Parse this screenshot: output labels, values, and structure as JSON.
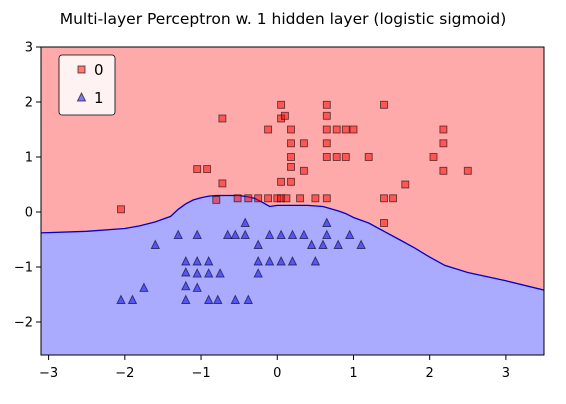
{
  "chart_data": {
    "type": "scatter",
    "title": "Multi-layer Perceptron w. 1 hidden layer (logistic sigmoid)",
    "xlabel": "",
    "ylabel": "",
    "xlim": [
      -3.1,
      3.5
    ],
    "ylim": [
      -2.6,
      3.0
    ],
    "x_ticks": [
      -3,
      -2,
      -1,
      0,
      1,
      2,
      3
    ],
    "y_ticks": [
      -2,
      -1,
      0,
      1,
      2,
      3
    ],
    "grid": false,
    "legend_position": "top-left",
    "colors": {
      "region_0": "#ffaaaa",
      "region_1": "#aaaaff",
      "marker_0": "#ff0000",
      "marker_1": "#0000ff",
      "boundary": "#0000cc"
    },
    "decision_boundary": {
      "x": [
        -3.1,
        -2.5,
        -2.0,
        -1.8,
        -1.6,
        -1.4,
        -1.3,
        -1.2,
        -1.1,
        -1.0,
        -0.9,
        -0.8,
        -0.7,
        -0.6,
        -0.5,
        -0.4,
        -0.3,
        -0.2,
        -0.1,
        0.0,
        0.2,
        0.4,
        0.6,
        0.8,
        0.9,
        1.0,
        1.2,
        1.4,
        1.6,
        1.8,
        2.0,
        2.2,
        2.5,
        3.0,
        3.5
      ],
      "y": [
        -0.38,
        -0.35,
        -0.3,
        -0.25,
        -0.18,
        -0.08,
        0.05,
        0.15,
        0.22,
        0.26,
        0.29,
        0.3,
        0.3,
        0.3,
        0.3,
        0.28,
        0.25,
        0.18,
        0.1,
        0.12,
        0.12,
        0.12,
        0.1,
        0.02,
        -0.03,
        -0.1,
        -0.2,
        -0.35,
        -0.5,
        -0.65,
        -0.82,
        -0.97,
        -1.1,
        -1.25,
        -1.42
      ]
    },
    "series": [
      {
        "name": "0",
        "marker": "square",
        "points": [
          [
            -2.05,
            0.05
          ],
          [
            -1.05,
            0.78
          ],
          [
            -0.92,
            0.78
          ],
          [
            -0.8,
            0.22
          ],
          [
            -0.72,
            0.52
          ],
          [
            -0.72,
            1.7
          ],
          [
            -0.52,
            0.25
          ],
          [
            -0.38,
            0.25
          ],
          [
            -0.25,
            0.25
          ],
          [
            -0.12,
            0.25
          ],
          [
            0.0,
            0.25
          ],
          [
            0.05,
            1.95
          ],
          [
            0.05,
            0.25
          ],
          [
            0.05,
            0.55
          ],
          [
            0.12,
            0.25
          ],
          [
            -0.12,
            1.5
          ],
          [
            0.05,
            1.7
          ],
          [
            0.1,
            1.75
          ],
          [
            0.18,
            1.0
          ],
          [
            0.18,
            1.25
          ],
          [
            0.18,
            1.5
          ],
          [
            0.18,
            0.55
          ],
          [
            0.18,
            0.82
          ],
          [
            0.3,
            0.25
          ],
          [
            0.35,
            0.75
          ],
          [
            0.35,
            1.25
          ],
          [
            0.5,
            0.25
          ],
          [
            0.65,
            1.95
          ],
          [
            0.65,
            1.75
          ],
          [
            0.65,
            1.5
          ],
          [
            0.65,
            1.25
          ],
          [
            0.65,
            1.0
          ],
          [
            0.65,
            0.25
          ],
          [
            0.78,
            1.0
          ],
          [
            0.78,
            1.5
          ],
          [
            0.9,
            1.0
          ],
          [
            0.9,
            1.5
          ],
          [
            1.0,
            1.5
          ],
          [
            1.2,
            1.0
          ],
          [
            1.4,
            1.95
          ],
          [
            1.4,
            0.25
          ],
          [
            1.4,
            -0.2
          ],
          [
            1.52,
            0.25
          ],
          [
            1.68,
            0.5
          ],
          [
            2.05,
            1.0
          ],
          [
            2.18,
            1.5
          ],
          [
            2.18,
            1.25
          ],
          [
            2.18,
            0.75
          ],
          [
            2.5,
            0.75
          ]
        ]
      },
      {
        "name": "1",
        "marker": "triangle",
        "points": [
          [
            -2.05,
            -1.6
          ],
          [
            -1.9,
            -1.6
          ],
          [
            -1.75,
            -1.38
          ],
          [
            -1.6,
            -0.6
          ],
          [
            -1.3,
            -0.42
          ],
          [
            -1.2,
            -0.9
          ],
          [
            -1.2,
            -1.1
          ],
          [
            -1.2,
            -1.35
          ],
          [
            -1.2,
            -1.6
          ],
          [
            -1.05,
            -0.42
          ],
          [
            -1.05,
            -0.9
          ],
          [
            -1.05,
            -1.12
          ],
          [
            -1.05,
            -1.38
          ],
          [
            -0.9,
            -0.9
          ],
          [
            -0.9,
            -1.12
          ],
          [
            -0.9,
            -1.6
          ],
          [
            -0.78,
            -1.6
          ],
          [
            -0.75,
            -1.12
          ],
          [
            -0.65,
            -0.42
          ],
          [
            -0.55,
            -0.42
          ],
          [
            -0.55,
            -1.6
          ],
          [
            -0.42,
            -0.2
          ],
          [
            -0.42,
            -0.42
          ],
          [
            -0.38,
            -1.6
          ],
          [
            -0.25,
            -0.6
          ],
          [
            -0.25,
            -0.9
          ],
          [
            -0.25,
            -1.12
          ],
          [
            -0.1,
            -0.42
          ],
          [
            -0.1,
            -0.9
          ],
          [
            0.05,
            -0.42
          ],
          [
            0.05,
            -0.9
          ],
          [
            0.2,
            -0.9
          ],
          [
            0.2,
            -0.42
          ],
          [
            0.35,
            -0.42
          ],
          [
            0.45,
            -0.6
          ],
          [
            0.5,
            -0.9
          ],
          [
            0.6,
            -0.6
          ],
          [
            0.65,
            -0.2
          ],
          [
            0.65,
            -0.42
          ],
          [
            0.8,
            -0.6
          ],
          [
            0.95,
            -0.42
          ],
          [
            1.1,
            -0.6
          ]
        ]
      }
    ]
  }
}
